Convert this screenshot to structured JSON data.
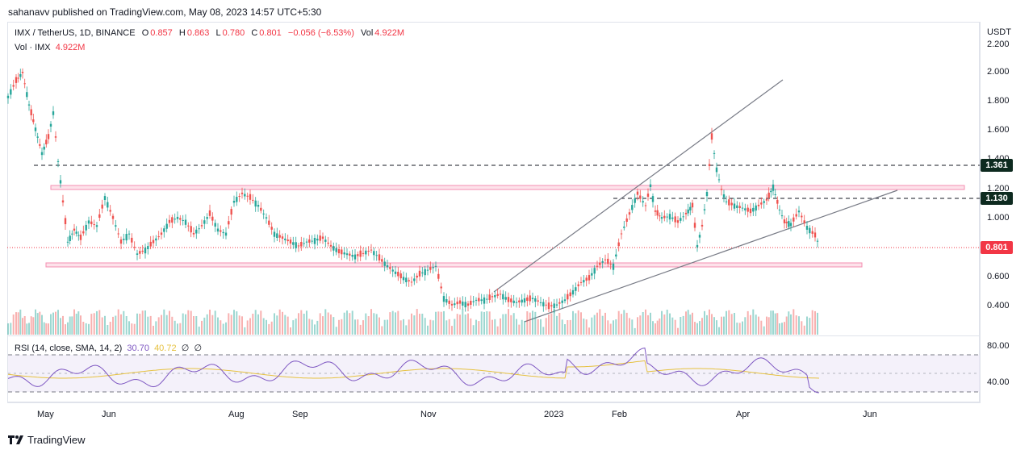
{
  "header": {
    "published_text": "sahanavv published on TradingView.com, May 08, 2023 14:57 UTC+5:30"
  },
  "legend": {
    "symbol": "IMX / TetherUS, 1D, BINANCE",
    "open_label": "O",
    "open": "0.857",
    "high_label": "H",
    "high": "0.863",
    "low_label": "L",
    "low": "0.780",
    "close_label": "C",
    "close": "0.801",
    "change": "−0.056 (−6.53%)",
    "vol_label": "Vol",
    "vol": "4.922M",
    "vol_line_label": "Vol · IMX",
    "vol_line_value": "4.922M"
  },
  "rsi_legend": {
    "label": "RSI (14, close, SMA, 14, 2)",
    "rsi": "30.70",
    "rsi_ma": "40.72",
    "v3": "∅",
    "v4": "∅"
  },
  "price_axis": {
    "currency": "USDT",
    "ticks": [
      "2.200",
      "2.000",
      "1.800",
      "1.600",
      "1.400",
      "1.200",
      "1.000",
      "0.600",
      "0.400"
    ],
    "rsi_ticks": [
      "80.00",
      "40.00"
    ]
  },
  "price_tags": {
    "level_high": "1.361",
    "level_mid": "1.130",
    "current": "0.801"
  },
  "time_axis": {
    "labels": [
      "May",
      "Jun",
      "Aug",
      "Sep",
      "Nov",
      "2023",
      "Feb",
      "Apr",
      "Jun"
    ]
  },
  "footer": {
    "brand": "TradingView"
  },
  "colors": {
    "up": "#26a69a",
    "down": "#ef5350",
    "rsi_line": "#7e57c2",
    "rsi_ma": "#e6c13f",
    "current_tag": "#f23645",
    "level_tag": "#0d2a1f",
    "zone": "#f8bbd0"
  }
}
